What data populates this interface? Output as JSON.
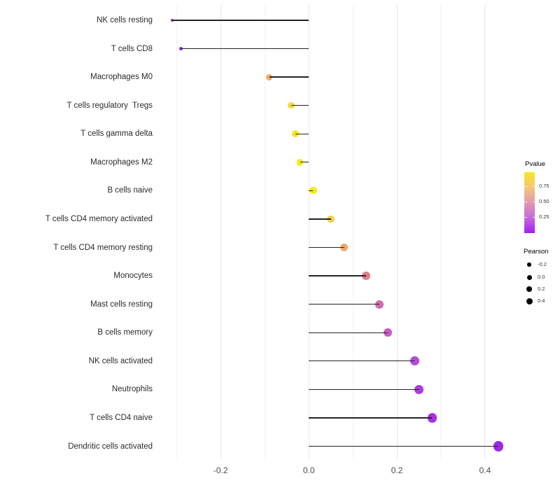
{
  "chart_data": {
    "type": "lollipop",
    "title": "",
    "xlabel": "",
    "ylabel": "",
    "xlim": [
      -0.345,
      0.47
    ],
    "baseline": 0,
    "grid": true,
    "legend_position": "right",
    "x_ticks": {
      "major": [
        -0.2,
        0.0,
        0.2,
        0.4
      ],
      "labels": [
        "-0.2",
        "0.0",
        "0.2",
        "0.4"
      ],
      "minor": [
        -0.3,
        -0.1,
        0.1,
        0.3
      ]
    },
    "points": [
      {
        "category": "NK cells resting",
        "pearson": -0.31,
        "color": "#9032c6"
      },
      {
        "category": "T cells CD8",
        "pearson": -0.29,
        "color": "#8d28c3"
      },
      {
        "category": "Macrophages M0",
        "pearson": -0.09,
        "color": "#efac69"
      },
      {
        "category": "T cells regulatory  Tregs",
        "pearson": -0.04,
        "color": "#f3dd33"
      },
      {
        "category": "T cells gamma delta",
        "pearson": -0.03,
        "color": "#f5e722"
      },
      {
        "category": "Macrophages M2",
        "pearson": -0.02,
        "color": "#f6e91b"
      },
      {
        "category": "B cells naive",
        "pearson": 0.01,
        "color": "#f7ec12"
      },
      {
        "category": "T cells CD4 memory activated",
        "pearson": 0.05,
        "color": "#f2d14e"
      },
      {
        "category": "T cells CD4 memory resting",
        "pearson": 0.08,
        "color": "#efa967"
      },
      {
        "category": "Monocytes",
        "pearson": 0.13,
        "color": "#e07f8d"
      },
      {
        "category": "Mast cells resting",
        "pearson": 0.16,
        "color": "#d46ab0"
      },
      {
        "category": "B cells memory",
        "pearson": 0.18,
        "color": "#c75cc3"
      },
      {
        "category": "NK cells activated",
        "pearson": 0.24,
        "color": "#b44cd8"
      },
      {
        "category": "Neutrophils",
        "pearson": 0.25,
        "color": "#ae3cdc"
      },
      {
        "category": "T cells CD4 naive",
        "pearson": 0.28,
        "color": "#a930e0"
      },
      {
        "category": "Dendritic cells activated",
        "pearson": 0.43,
        "color": "#9c27e4"
      }
    ],
    "color_legend": {
      "title": "Pvalue",
      "tick_labels": [
        "0.75",
        "0.50",
        "0.25"
      ],
      "gradient": [
        "#f8e821",
        "#f5c677",
        "#e399b1",
        "#c568dd",
        "#a220ef"
      ]
    },
    "size_legend": {
      "title": "Pearson",
      "labels": [
        "-0.2",
        "0.0",
        "0.2",
        "0.4"
      ]
    }
  }
}
